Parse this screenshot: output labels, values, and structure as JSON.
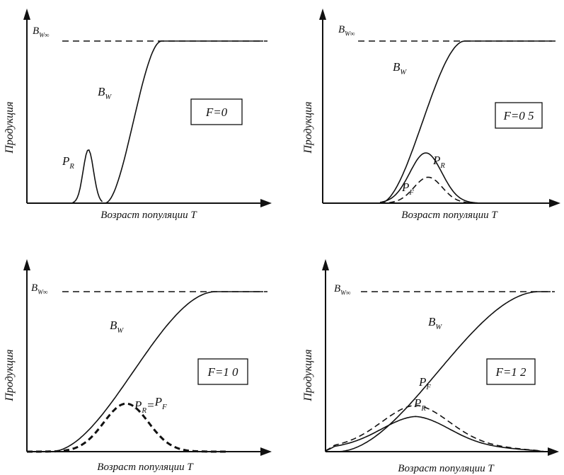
{
  "chart_data": [
    {
      "type": "line",
      "F_label": "F=0",
      "ylabel": "Продукция",
      "xlabel": "Возраст популяции T",
      "asymptote_label": "Bw∞",
      "asymptote_main": "B",
      "asymptote_sub": "W∞",
      "series": [
        {
          "main": "B",
          "sub": "W",
          "style": "solid",
          "shape": "logistic",
          "start": 0.33,
          "mid": 0.45,
          "end": 0.57
        },
        {
          "main": "P",
          "sub": "R",
          "style": "solid",
          "shape": "peak",
          "center": 0.26,
          "width": 0.022,
          "height": 0.33,
          "startx": 0.19,
          "endx": 0.32
        }
      ]
    },
    {
      "type": "line",
      "F_label": "F=0 5",
      "ylabel": "Продукция",
      "xlabel": "Возраст популяции T",
      "asymptote_label": "Bw∞",
      "asymptote_main": "B",
      "asymptote_sub": "W∞",
      "series": [
        {
          "main": "B",
          "sub": "W",
          "style": "solid",
          "shape": "logistic",
          "start": 0.25,
          "mid": 0.45,
          "end": 0.62
        },
        {
          "main": "P",
          "sub": "R",
          "style": "solid",
          "shape": "peak",
          "center": 0.45,
          "width": 0.07,
          "height": 0.31,
          "startx": 0.25,
          "endx": 0.68
        },
        {
          "main": "P",
          "sub": "F",
          "style": "dashed",
          "shape": "peak",
          "center": 0.46,
          "width": 0.062,
          "height": 0.16,
          "startx": 0.25,
          "endx": 0.68
        }
      ]
    },
    {
      "type": "line",
      "F_label": "F=1 0",
      "ylabel": "Продукция",
      "xlabel": "Возраст популяции T",
      "asymptote_label": "Bw∞",
      "asymptote_main": "B",
      "asymptote_sub": "W∞",
      "series": [
        {
          "main": "B",
          "sub": "W",
          "style": "solid",
          "shape": "logistic",
          "start": 0.1,
          "mid": 0.47,
          "end": 0.8
        },
        {
          "main": "P",
          "sub": "R",
          "style": "bold-dashed",
          "shape": "peak",
          "center": 0.42,
          "width": 0.095,
          "height": 0.3,
          "startx": 0.0,
          "endx": 0.85
        }
      ],
      "annotation": "PR=PF"
    },
    {
      "type": "line",
      "F_label": "F=1 2",
      "ylabel": "Продукция",
      "xlabel": "Возраст популяции T",
      "asymptote_label": "Bw∞",
      "asymptote_main": "B",
      "asymptote_sub": "W∞",
      "series": [
        {
          "main": "B",
          "sub": "W",
          "style": "solid",
          "shape": "logistic",
          "start": 0.05,
          "mid": 0.42,
          "end": 0.95
        },
        {
          "main": "P",
          "sub": "F",
          "style": "dashed",
          "shape": "peak",
          "center": 0.4,
          "width": 0.15,
          "height": 0.22,
          "startx": 0.0,
          "endx": 0.98,
          "base": 0.07
        },
        {
          "main": "P",
          "sub": "R",
          "style": "solid",
          "shape": "peak",
          "center": 0.4,
          "width": 0.15,
          "height": 0.16,
          "startx": 0.0,
          "endx": 0.98,
          "base": 0.06
        }
      ]
    }
  ]
}
